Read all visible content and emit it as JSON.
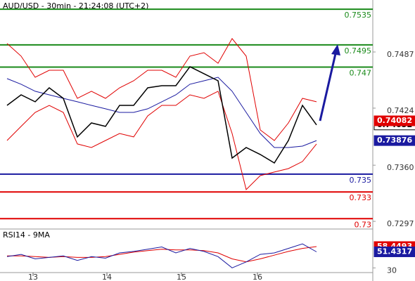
{
  "chart_data": [
    {
      "type": "line",
      "title": "AUD/USD - 30min - 21:24:08 (UTC+2)",
      "x": [
        1,
        3,
        5,
        7,
        9,
        11,
        13,
        15,
        17,
        19,
        21,
        23,
        25,
        27,
        29,
        31,
        33,
        35,
        37,
        39,
        41,
        43,
        45
      ],
      "xlim": [
        0,
        53
      ],
      "xticks": [
        {
          "value": 4.7,
          "label": "13"
        },
        {
          "value": 15.2,
          "label": "14"
        },
        {
          "value": 25.8,
          "label": "15"
        },
        {
          "value": 36.6,
          "label": "16"
        }
      ],
      "ylim": [
        0.72892,
        0.75453
      ],
      "yticks": [
        0.7297,
        {
          "value": 0.736,
          "label": "0.7360"
        },
        0.7424,
        0.7487
      ],
      "levels": [
        {
          "value": 0.7535,
          "color": "#1a8a1a"
        },
        {
          "value": 0.7495,
          "color": "#1a8a1a"
        },
        {
          "value": 0.747,
          "color": "#1a8a1a"
        },
        {
          "value": 0.735,
          "color": "#1a1aa0"
        },
        {
          "value": 0.733,
          "color": "#e00000"
        },
        {
          "value": 0.73,
          "color": "#e00000"
        }
      ],
      "price_labels": [
        {
          "value": 0.74082,
          "color": "#e00000"
        }
      ],
      "series": [
        {
          "color": "#e00000",
          "values": [
            0.74965,
            0.74823,
            0.74586,
            0.74665,
            0.74665,
            0.7435,
            0.74429,
            0.7435,
            0.74468,
            0.74547,
            0.74665,
            0.74665,
            0.74586,
            0.74823,
            0.74862,
            0.74744,
            0.7502,
            0.74823,
            0.73995,
            0.73877,
            0.74074,
            0.7435,
            0.74311
          ]
        },
        {
          "color": "#e00000",
          "values": [
            0.73877,
            0.74035,
            0.74192,
            0.74271,
            0.74192,
            0.73838,
            0.73798,
            0.73877,
            0.73956,
            0.73917,
            0.74153,
            0.74271,
            0.74271,
            0.74389,
            0.7435,
            0.74429,
            0.73956,
            0.73326,
            0.73483,
            0.73523,
            0.73562,
            0.73641,
            0.73838
          ]
        },
        {
          "color": "#1a1aa0",
          "label_box": true,
          "values": [
            0.74571,
            0.74508,
            0.74429,
            0.74389,
            0.7435,
            0.74311,
            0.74271,
            0.74232,
            0.74192,
            0.74192,
            0.74232,
            0.74311,
            0.74389,
            0.74508,
            0.74547,
            0.74586,
            0.74429,
            0.74192,
            0.73956,
            0.73798,
            0.73798,
            0.73814,
            0.73876
          ]
        },
        {
          "color": "#000000",
          "label_box": true,
          "values": [
            0.74271,
            0.74389,
            0.74311,
            0.74468,
            0.7435,
            0.73917,
            0.74074,
            0.74035,
            0.74271,
            0.74271,
            0.74468,
            0.74492,
            0.74492,
            0.74705,
            0.74626,
            0.74547,
            0.7368,
            0.73798,
            0.7372,
            0.73625,
            0.73877,
            0.74271,
            0.74052
          ]
        }
      ]
    },
    {
      "type": "line",
      "title": "RSI14 - 9MA",
      "x": [
        1,
        3,
        5,
        7,
        9,
        11,
        13,
        15,
        17,
        19,
        21,
        23,
        25,
        27,
        29,
        31,
        33,
        35,
        37,
        39,
        41,
        43,
        45
      ],
      "xlim": [
        0,
        53
      ],
      "ylim": [
        20,
        80
      ],
      "yticks": [
        30
      ],
      "series": [
        {
          "color": "#e00000",
          "label_box": true,
          "values": [
            46,
            46,
            45,
            44,
            45,
            44,
            44,
            45,
            48,
            51,
            53,
            55,
            54,
            54,
            53,
            50,
            42,
            38,
            42,
            47,
            52,
            56,
            58.4493
          ]
        },
        {
          "color": "#1a1aa0",
          "label_box": true,
          "values": [
            45,
            48,
            42,
            44,
            46,
            40,
            45,
            43,
            50,
            52,
            55,
            58,
            50,
            56,
            52,
            45,
            30,
            38,
            48,
            50,
            56,
            62,
            51.4317
          ]
        }
      ]
    }
  ]
}
